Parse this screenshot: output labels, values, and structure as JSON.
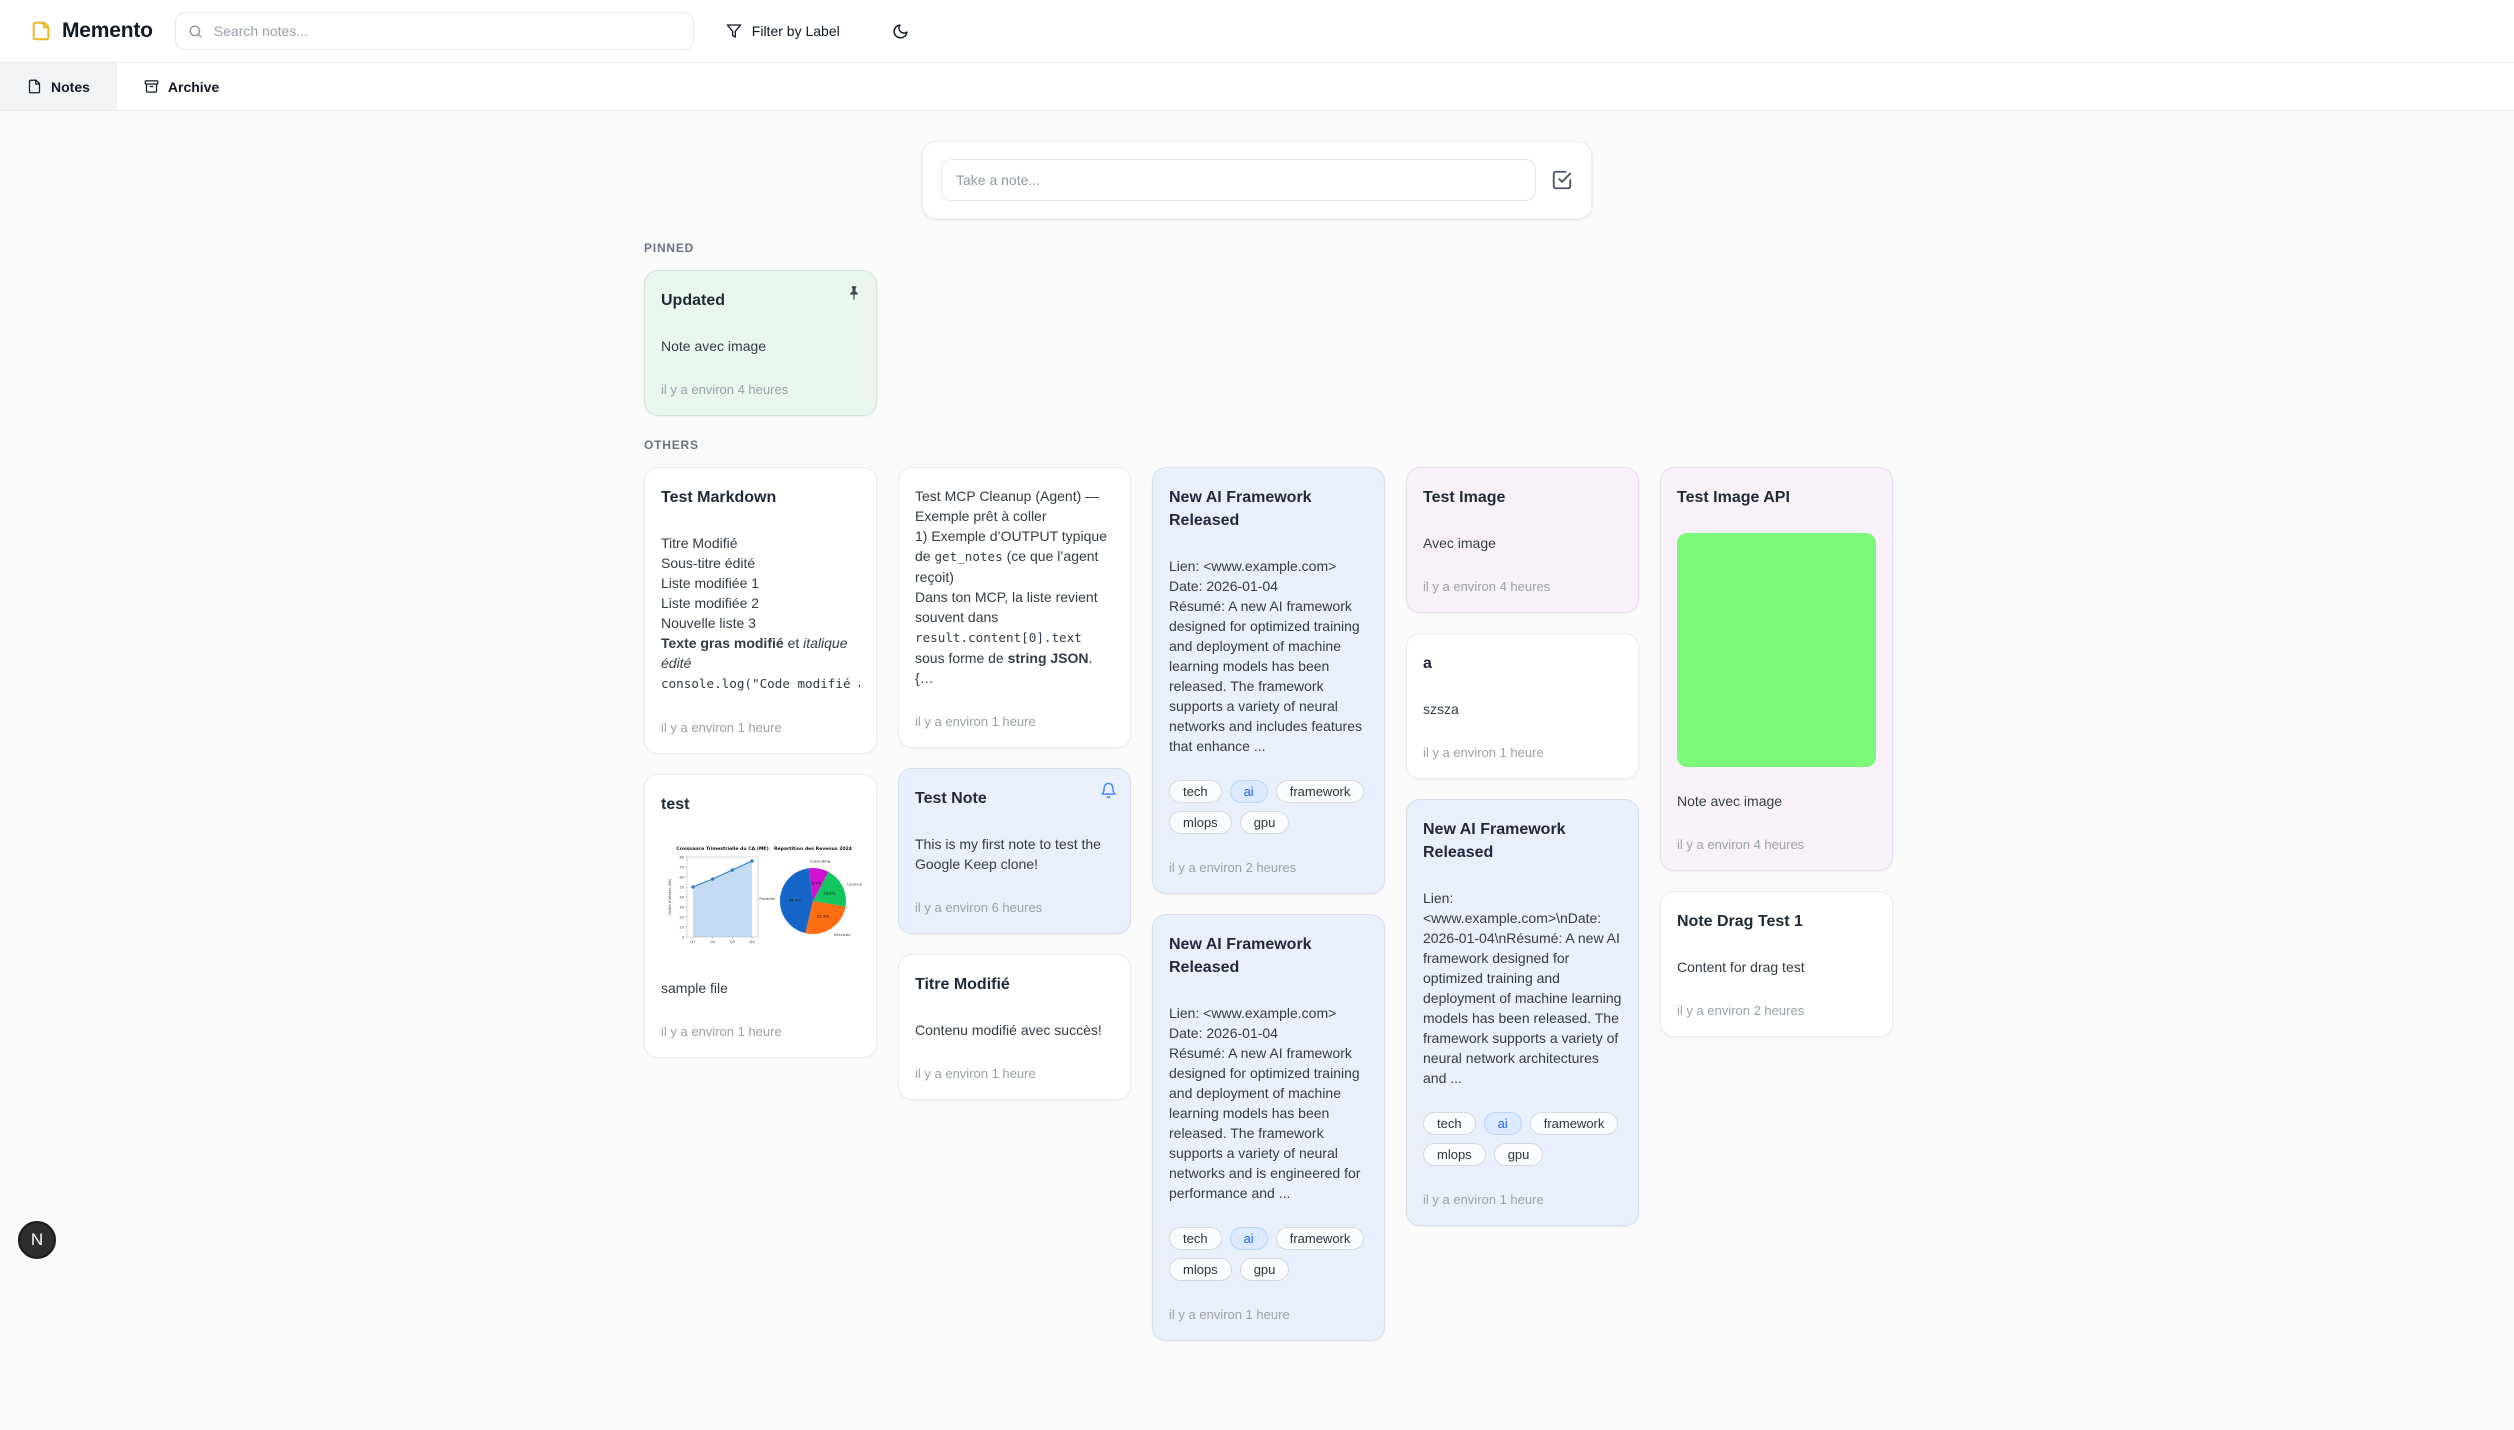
{
  "header": {
    "app_title": "Memento",
    "search": {
      "placeholder": "Search notes..."
    },
    "filter_button": "Filter by Label"
  },
  "tabs": [
    {
      "id": "notes",
      "label": "Notes",
      "active": true
    },
    {
      "id": "archive",
      "label": "Archive",
      "active": false
    }
  ],
  "composer": {
    "placeholder": "Take a note..."
  },
  "palette": {
    "card_green": "#e9f6ee",
    "card_blue": "#e9f0fc",
    "card_purple": "#f8f1fa",
    "card_white": "#ffffff",
    "tag_accent_bg": "#dbeafe",
    "tag_accent_text": "#2563eb",
    "bell_blue": "#3b82f6",
    "pin_gray": "#3d4552",
    "image_green": "#7bf97b"
  },
  "figures": {
    "revenue-charts": {
      "charts": [
        {
          "type": "area",
          "title": "Croissance Trimestrielle du CA (M€)",
          "ylabel": "Chiffre d'affaires (M€)",
          "categories": [
            "Q1",
            "Q2",
            "Q3",
            "Q4"
          ],
          "values": [
            50,
            58,
            67,
            76
          ],
          "ylim": [
            0,
            80
          ],
          "ytick_step": 10,
          "line_color": "#2f7fc1",
          "fill_color": "#bcd8f2"
        },
        {
          "type": "pie",
          "title": "Répartition des Revenus 2024",
          "start_angle": -10,
          "slices": [
            {
              "label": "Licences",
              "value": 20.0,
              "color": "#12c55f"
            },
            {
              "label": "Consulting",
              "value": 9.7,
              "color": "#cf12cf"
            },
            {
              "label": "Produits",
              "value": 44.4,
              "color": "#1666c9"
            },
            {
              "label": "Services",
              "value": 25.9,
              "color": "#fd6d12"
            }
          ]
        }
      ]
    },
    "green-image": {
      "type": "solid",
      "color": "#7bf97b"
    }
  },
  "sections": [
    {
      "id": "pinned",
      "label": "PINNED",
      "columns": [
        [
          {
            "id": "updated",
            "color": "green",
            "corner_icon": "pin-icon",
            "title": "Updated",
            "body": [
              {
                "type": "text",
                "runs": [
                  {
                    "t": "Note avec image"
                  }
                ]
              }
            ],
            "footer": "il y a environ 4 heures"
          }
        ]
      ]
    },
    {
      "id": "others",
      "label": "OTHERS",
      "columns": [
        [
          {
            "id": "test-markdown",
            "color": "white",
            "title": "Test Markdown",
            "body": [
              {
                "type": "text",
                "runs": [
                  {
                    "t": "Titre Modifié\nSous-titre édité\nListe modifiée 1\nListe modifiée 2\nNouvelle liste 3\n"
                  },
                  {
                    "t": "Texte gras modifié",
                    "s": "bold"
                  },
                  {
                    "t": " et "
                  },
                  {
                    "t": "italique édité",
                    "s": "italic"
                  }
                ]
              },
              {
                "type": "text",
                "nowrap": true,
                "runs": [
                  {
                    "t": "console.log(\"Code modifié avec succès\")",
                    "s": "code"
                  }
                ]
              }
            ],
            "footer": "il y a environ 1 heure"
          },
          {
            "id": "test",
            "color": "white",
            "title": "test",
            "body": [
              {
                "type": "figure",
                "figure": "revenue-charts"
              },
              {
                "type": "text",
                "runs": [
                  {
                    "t": "sample file"
                  }
                ]
              }
            ],
            "footer": "il y a environ 1 heure"
          }
        ],
        [
          {
            "id": "test-mcp-cleanup",
            "color": "white",
            "body": [
              {
                "type": "text",
                "runs": [
                  {
                    "t": "Test MCP Cleanup (Agent) — Exemple prêt à coller\n1) Exemple d’OUTPUT typique de "
                  },
                  {
                    "t": "get_notes",
                    "s": "code"
                  },
                  {
                    "t": " (ce que l’agent reçoit)\nDans ton MCP, la liste revient souvent dans "
                  },
                  {
                    "t": "result.content[0].text",
                    "s": "code"
                  },
                  {
                    "t": " sous forme de "
                  },
                  {
                    "t": "string JSON",
                    "s": "bold"
                  },
                  {
                    "t": ".\n{…"
                  }
                ]
              }
            ],
            "footer": "il y a environ 1 heure"
          },
          {
            "id": "test-note",
            "color": "blue",
            "corner_icon": "bell-icon",
            "title": "Test Note",
            "body": [
              {
                "type": "text",
                "runs": [
                  {
                    "t": "This is my first note to test the Google Keep clone!"
                  }
                ]
              }
            ],
            "footer": "il y a environ 6 heures"
          },
          {
            "id": "titre-modifie",
            "color": "white",
            "title": "Titre Modifié",
            "body": [
              {
                "type": "text",
                "runs": [
                  {
                    "t": "Contenu modifié avec succès!"
                  }
                ]
              }
            ],
            "footer": "il y a environ 1 heure"
          }
        ],
        [
          {
            "id": "new-ai-framework-1",
            "color": "blue",
            "title": "New AI Framework Released",
            "body": [
              {
                "type": "text",
                "runs": [
                  {
                    "t": "Lien: <www.example.com>\nDate: 2026-01-04\nRésumé: A new AI framework designed for optimized training and deployment of machine learning models has been released. The framework supports a variety of neural networks and includes features that enhance ..."
                  }
                ]
              }
            ],
            "tags": [
              {
                "label": "tech"
              },
              {
                "label": "ai",
                "accent": true
              },
              {
                "label": "framework"
              },
              {
                "label": "mlops"
              },
              {
                "label": "gpu"
              }
            ],
            "footer": "il y a environ 2 heures"
          },
          {
            "id": "new-ai-framework-2",
            "color": "blue",
            "title": "New AI Framework Released",
            "body": [
              {
                "type": "text",
                "runs": [
                  {
                    "t": "Lien: <www.example.com>\nDate: 2026-01-04\nRésumé: A new AI framework designed for optimized training and deployment of machine learning models has been released. The framework supports a variety of neural networks and is engineered for performance and ..."
                  }
                ]
              }
            ],
            "tags": [
              {
                "label": "tech"
              },
              {
                "label": "ai",
                "accent": true
              },
              {
                "label": "framework"
              },
              {
                "label": "mlops"
              },
              {
                "label": "gpu"
              }
            ],
            "footer": "il y a environ 1 heure"
          }
        ],
        [
          {
            "id": "test-image",
            "color": "purple",
            "title": "Test Image",
            "body": [
              {
                "type": "text",
                "runs": [
                  {
                    "t": "Avec image"
                  }
                ]
              }
            ],
            "footer": "il y a environ 4 heures"
          },
          {
            "id": "a",
            "color": "white",
            "title": "a",
            "body": [
              {
                "type": "text",
                "runs": [
                  {
                    "t": "szsza"
                  }
                ]
              }
            ],
            "footer": "il y a environ 1 heure"
          },
          {
            "id": "new-ai-framework-3",
            "color": "blue",
            "title": "New AI Framework Released",
            "body": [
              {
                "type": "text",
                "runs": [
                  {
                    "t": "Lien: <www.example.com>\\nDate: 2026-01-04\\nRésumé: A new AI framework designed for optimized training and deployment of machine learning models has been released. The framework supports a variety of neural network architectures and ..."
                  }
                ]
              }
            ],
            "tags": [
              {
                "label": "tech"
              },
              {
                "label": "ai",
                "accent": true
              },
              {
                "label": "framework"
              },
              {
                "label": "mlops"
              },
              {
                "label": "gpu"
              }
            ],
            "footer": "il y a environ 1 heure"
          }
        ],
        [
          {
            "id": "test-image-api",
            "color": "purple",
            "title": "Test Image API",
            "body": [
              {
                "type": "figure",
                "figure": "green-image"
              },
              {
                "type": "text",
                "runs": [
                  {
                    "t": "Note avec image"
                  }
                ]
              }
            ],
            "footer": "il y a environ 4 heures"
          },
          {
            "id": "note-drag-test-1",
            "color": "white",
            "title": "Note Drag Test 1",
            "body": [
              {
                "type": "text",
                "runs": [
                  {
                    "t": "Content for drag test"
                  }
                ]
              }
            ],
            "footer": "il y a environ 2 heures"
          }
        ]
      ]
    }
  ],
  "dev_badge": {
    "label": "N"
  }
}
